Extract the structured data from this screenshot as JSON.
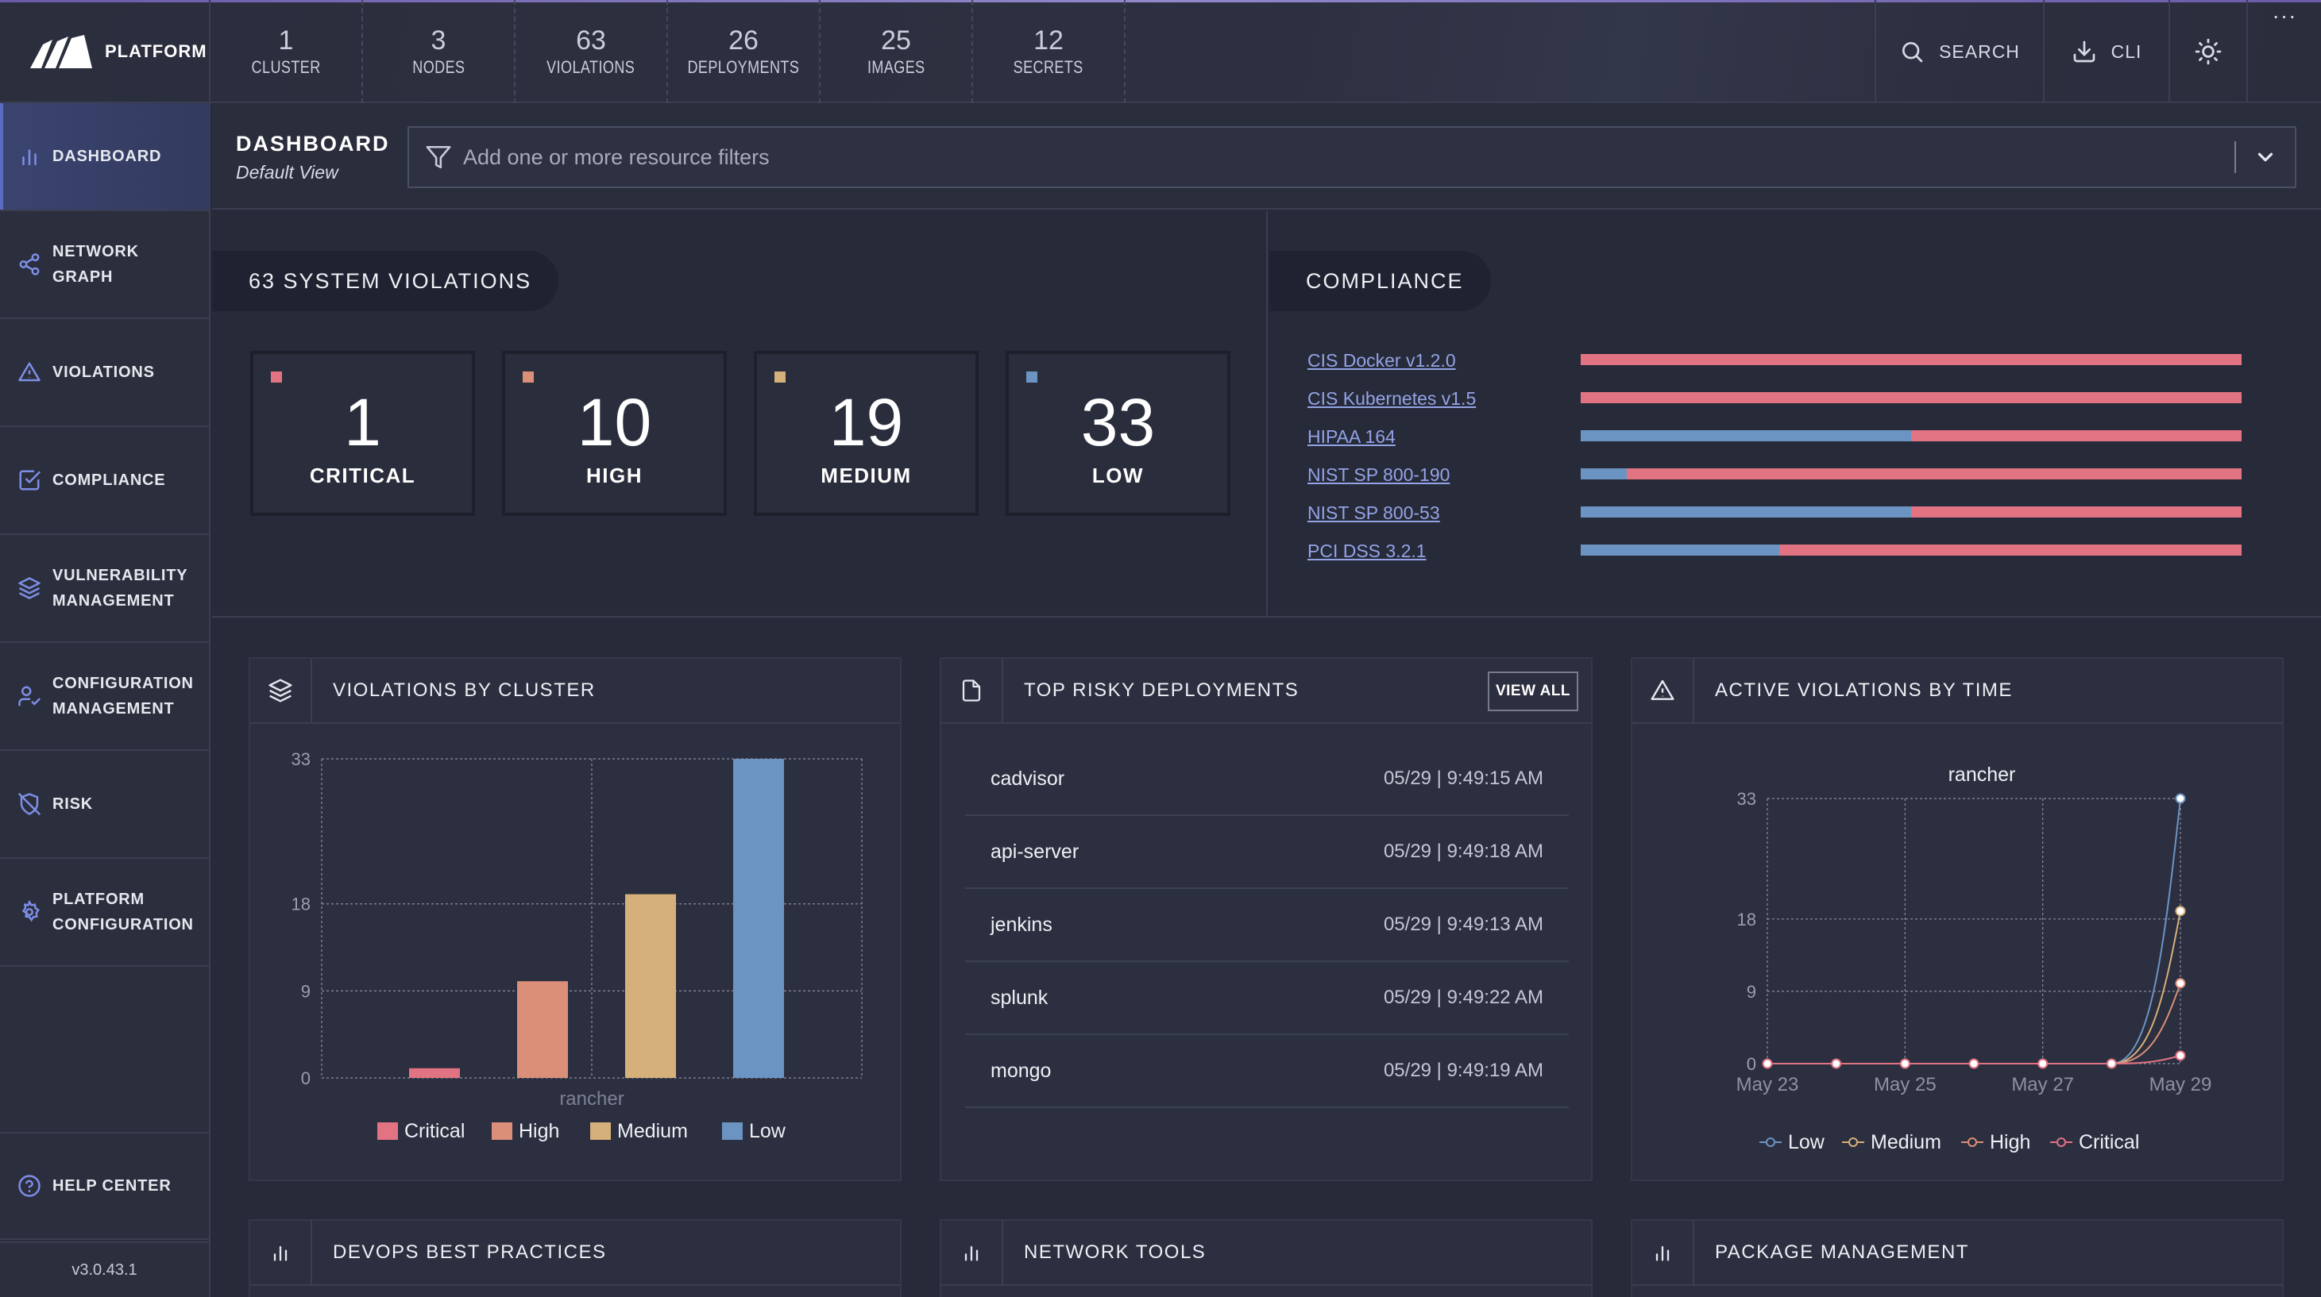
{
  "brand": {
    "name": "PLATFORM"
  },
  "topbar": {
    "counts": [
      {
        "value": "1",
        "label": "CLUSTER"
      },
      {
        "value": "3",
        "label": "NODES"
      },
      {
        "value": "63",
        "label": "VIOLATIONS"
      },
      {
        "value": "26",
        "label": "DEPLOYMENTS"
      },
      {
        "value": "25",
        "label": "IMAGES"
      },
      {
        "value": "12",
        "label": "SECRETS"
      }
    ],
    "search_label": "SEARCH",
    "cli_label": "CLI",
    "more_label": "···"
  },
  "sidebar": {
    "items": [
      {
        "label": "DASHBOARD",
        "icon": "bar-chart-icon"
      },
      {
        "label": "NETWORK GRAPH",
        "icon": "share-icon"
      },
      {
        "label": "VIOLATIONS",
        "icon": "alert-triangle-icon"
      },
      {
        "label": "COMPLIANCE",
        "icon": "check-square-icon"
      },
      {
        "label": "VULNERABILITY MANAGEMENT",
        "icon": "layers-icon"
      },
      {
        "label": "CONFIGURATION MANAGEMENT",
        "icon": "user-check-icon"
      },
      {
        "label": "RISK",
        "icon": "shield-off-icon"
      },
      {
        "label": "PLATFORM CONFIGURATION",
        "icon": "settings-icon"
      }
    ],
    "help": {
      "label": "HELP CENTER",
      "icon": "help-circle-icon"
    },
    "version": "v3.0.43.1"
  },
  "header": {
    "title": "DASHBOARD",
    "subtitle": "Default View",
    "filter_placeholder": "Add one or more resource filters"
  },
  "system_violations": {
    "title": "63 SYSTEM VIOLATIONS",
    "tiles": [
      {
        "count": "1",
        "label": "CRITICAL",
        "color": "#e27383"
      },
      {
        "count": "10",
        "label": "HIGH",
        "color": "#dc8f78"
      },
      {
        "count": "19",
        "label": "MEDIUM",
        "color": "#d5b07a"
      },
      {
        "count": "33",
        "label": "LOW",
        "color": "#6c94c2"
      }
    ]
  },
  "compliance": {
    "title": "COMPLIANCE",
    "standards": [
      {
        "name": "CIS Docker v1.2.0",
        "pass_fraction": 0.0
      },
      {
        "name": "CIS Kubernetes v1.5",
        "pass_fraction": 0.0
      },
      {
        "name": "HIPAA 164",
        "pass_fraction": 0.5
      },
      {
        "name": "NIST SP 800-190",
        "pass_fraction": 0.07
      },
      {
        "name": "NIST SP 800-53",
        "pass_fraction": 0.5
      },
      {
        "name": "PCI DSS 3.2.1",
        "pass_fraction": 0.3
      }
    ]
  },
  "widgets": {
    "violations_by_cluster": {
      "title": "VIOLATIONS BY CLUSTER"
    },
    "top_risky": {
      "title": "TOP RISKY DEPLOYMENTS",
      "view_all": "VIEW ALL",
      "rows": [
        {
          "name": "cadvisor",
          "time": "05/29 | 9:49:15 AM"
        },
        {
          "name": "api-server",
          "time": "05/29 | 9:49:18 AM"
        },
        {
          "name": "jenkins",
          "time": "05/29 | 9:49:13 AM"
        },
        {
          "name": "splunk",
          "time": "05/29 | 9:49:22 AM"
        },
        {
          "name": "mongo",
          "time": "05/29 | 9:49:19 AM"
        }
      ]
    },
    "active_by_time": {
      "title": "ACTIVE VIOLATIONS BY TIME"
    },
    "devops": {
      "title": "DEVOPS BEST PRACTICES"
    },
    "network_tools": {
      "title": "NETWORK TOOLS"
    },
    "package_mgmt": {
      "title": "PACKAGE MANAGEMENT"
    }
  },
  "chart_data": [
    {
      "type": "bar",
      "categories": [
        "rancher"
      ],
      "xlabel": "rancher",
      "ylim": [
        0,
        33
      ],
      "yticks": [
        "0",
        "9",
        "18",
        "33"
      ],
      "grid": true,
      "legend_position": "bottom",
      "series": [
        {
          "name": "Critical",
          "values": [
            1
          ],
          "color": "#e27383"
        },
        {
          "name": "High",
          "values": [
            10
          ],
          "color": "#dc8f78"
        },
        {
          "name": "Medium",
          "values": [
            19
          ],
          "color": "#d5b07a"
        },
        {
          "name": "Low",
          "values": [
            33
          ],
          "color": "#6c94c2"
        }
      ]
    },
    {
      "type": "line",
      "title": "rancher",
      "x": [
        "May 23",
        "May 24",
        "May 25",
        "May 26",
        "May 27",
        "May 28",
        "May 29"
      ],
      "xticks": [
        "May 23",
        "May 25",
        "May 27",
        "May 29"
      ],
      "ylim": [
        0,
        33
      ],
      "yticks": [
        "0",
        "9",
        "18",
        "33"
      ],
      "grid": true,
      "legend_position": "bottom",
      "series": [
        {
          "name": "Low",
          "values": [
            0,
            0,
            0,
            0,
            0,
            0,
            33
          ],
          "color": "#6c94c2"
        },
        {
          "name": "Medium",
          "values": [
            0,
            0,
            0,
            0,
            0,
            0,
            19
          ],
          "color": "#d5b07a"
        },
        {
          "name": "High",
          "values": [
            0,
            0,
            0,
            0,
            0,
            0,
            10
          ],
          "color": "#dc8f78"
        },
        {
          "name": "Critical",
          "values": [
            0,
            0,
            0,
            0,
            0,
            0,
            1
          ],
          "color": "#e27383"
        }
      ]
    }
  ]
}
